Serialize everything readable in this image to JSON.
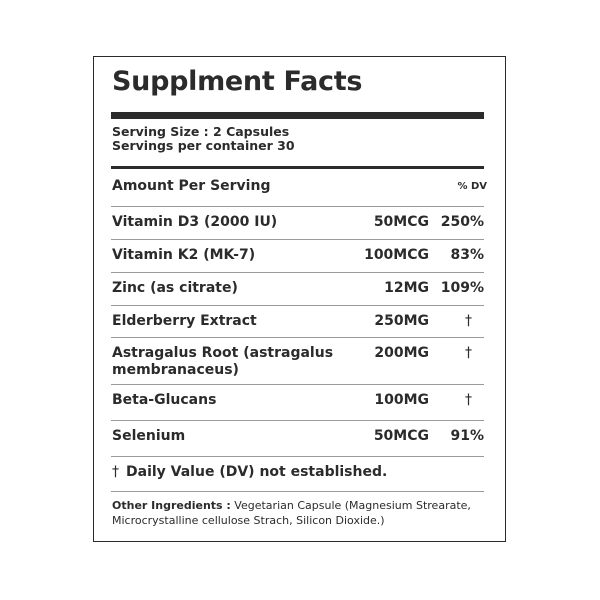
{
  "title": "Supplment Facts",
  "serving": {
    "size": "Serving Size : 2 Capsules",
    "per_container": "Servings per container 30"
  },
  "header": {
    "amount": "Amount Per Serving",
    "dv": "% DV"
  },
  "rows": [
    {
      "name": "Vitamin D3 (2000 IU)",
      "amount": "50MCG",
      "dv": "250%"
    },
    {
      "name": "Vitamin K2 (MK-7)",
      "amount": "100MCG",
      "dv": "83%"
    },
    {
      "name": "Zinc (as citrate)",
      "amount": "12MG",
      "dv": "109%"
    },
    {
      "name": "Elderberry Extract",
      "amount": "250MG",
      "dv": "†"
    },
    {
      "name": "Astragalus Root (astragalus",
      "name_line2": "membranaceus)",
      "amount": "200MG",
      "dv": "†"
    },
    {
      "name": "Beta-Glucans",
      "amount": "100MG",
      "dv": "†"
    },
    {
      "name": "Selenium",
      "amount": "50MCG",
      "dv": "91%"
    }
  ],
  "footnote": {
    "symbol": "†",
    "text": "Daily Value (DV) not established."
  },
  "ingredients": {
    "label": "Other Ingredients :",
    "text": " Vegetarian Capsule (Magnesium Strearate, Microcrystalline cellulose Strach, Silicon Dioxide.)"
  }
}
